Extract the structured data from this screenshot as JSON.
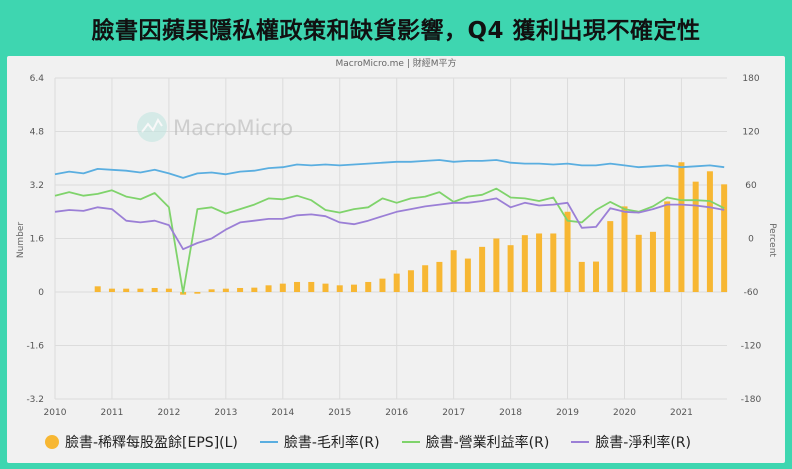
{
  "headline": "臉書因蘋果隱私權政策和缺貨影響，Q4 獲利出現不確定性",
  "source": "MacroMicro.me | 財經M平方",
  "watermark": "MacroMicro",
  "colors": {
    "eps": "#f7b733",
    "gross": "#5aaee0",
    "operating": "#7fd36b",
    "net": "#9b7fd6",
    "grid": "#dcdcdc",
    "axis_text": "#555555",
    "page_bg": "#3ed6b0",
    "card_bg": "#f1f1f1"
  },
  "chart_data": {
    "type": "bar+line",
    "title": "",
    "xlabel": "",
    "ylabel_left": "Number",
    "ylabel_right": "Percent",
    "xlim": [
      2010.0,
      2021.8
    ],
    "ylim_left": [
      -3.2,
      6.4
    ],
    "ylim_right": [
      -180,
      180
    ],
    "yticks_left": [
      "6.4",
      "4.8",
      "3.2",
      "1.6",
      "0",
      "-1.6",
      "-3.2"
    ],
    "yticks_right": [
      "180",
      "120",
      "60",
      "0",
      "-60",
      "-120",
      "-180"
    ],
    "xticks": [
      "2010",
      "2011",
      "2012",
      "2013",
      "2014",
      "2015",
      "2016",
      "2017",
      "2018",
      "2019",
      "2020",
      "2021"
    ],
    "grid": true,
    "legend_position": "bottom",
    "legend": [
      "臉書-稀釋每股盈餘[EPS](L)",
      "臉書-毛利率(R)",
      "臉書-營業利益率(R)",
      "臉書-淨利率(R)"
    ],
    "series": [
      {
        "name": "臉書-稀釋每股盈餘[EPS](L)",
        "type": "bar",
        "axis": "left",
        "color_key": "eps",
        "x": [
          2010.75,
          2011.0,
          2011.25,
          2011.5,
          2011.75,
          2012.0,
          2012.25,
          2012.5,
          2012.75,
          2013.0,
          2013.25,
          2013.5,
          2013.75,
          2014.0,
          2014.25,
          2014.5,
          2014.75,
          2015.0,
          2015.25,
          2015.5,
          2015.75,
          2016.0,
          2016.25,
          2016.5,
          2016.75,
          2017.0,
          2017.25,
          2017.5,
          2017.75,
          2018.0,
          2018.25,
          2018.5,
          2018.75,
          2019.0,
          2019.25,
          2019.5,
          2019.75,
          2020.0,
          2020.25,
          2020.5,
          2020.75,
          2021.0,
          2021.25,
          2021.5
        ],
        "y": [
          0.17,
          0.1,
          0.1,
          0.1,
          0.12,
          0.1,
          -0.08,
          -0.05,
          0.08,
          0.1,
          0.12,
          0.13,
          0.2,
          0.25,
          0.3,
          0.3,
          0.25,
          0.2,
          0.22,
          0.3,
          0.4,
          0.55,
          0.65,
          0.8,
          0.9,
          1.25,
          1.0,
          1.35,
          1.6,
          1.4,
          1.7,
          1.75,
          1.75,
          2.4,
          0.9,
          0.91,
          2.12,
          2.56,
          1.71,
          1.8,
          2.71,
          3.88,
          3.3,
          3.61
        ],
        "labels_note": "final bar 2021.75 = 3.22"
      },
      {
        "name": "臉書-毛利率(R)",
        "type": "line",
        "axis": "right",
        "color_key": "gross",
        "x": [
          2010.0,
          2010.25,
          2010.5,
          2010.75,
          2011.0,
          2011.25,
          2011.5,
          2011.75,
          2012.0,
          2012.25,
          2012.5,
          2012.75,
          2013.0,
          2013.25,
          2013.5,
          2013.75,
          2014.0,
          2014.25,
          2014.5,
          2014.75,
          2015.0,
          2015.25,
          2015.5,
          2015.75,
          2016.0,
          2016.25,
          2016.5,
          2016.75,
          2017.0,
          2017.25,
          2017.5,
          2017.75,
          2018.0,
          2018.25,
          2018.5,
          2018.75,
          2019.0,
          2019.25,
          2019.5,
          2019.75,
          2020.0,
          2020.25,
          2020.5,
          2020.75,
          2021.0,
          2021.25,
          2021.5,
          2021.75
        ],
        "y": [
          72,
          75,
          73,
          78,
          77,
          76,
          74,
          77,
          73,
          68,
          73,
          74,
          72,
          75,
          76,
          79,
          80,
          83,
          82,
          83,
          82,
          83,
          84,
          85,
          86,
          86,
          87,
          88,
          86,
          87,
          87,
          88,
          85,
          84,
          84,
          83,
          84,
          82,
          82,
          84,
          82,
          80,
          81,
          82,
          80,
          81,
          82,
          80
        ]
      },
      {
        "name": "臉書-營業利益率(R)",
        "type": "line",
        "axis": "right",
        "color_key": "operating",
        "x": [
          2010.0,
          2010.25,
          2010.5,
          2010.75,
          2011.0,
          2011.25,
          2011.5,
          2011.75,
          2012.0,
          2012.25,
          2012.5,
          2012.75,
          2013.0,
          2013.25,
          2013.5,
          2013.75,
          2014.0,
          2014.25,
          2014.5,
          2014.75,
          2015.0,
          2015.25,
          2015.5,
          2015.75,
          2016.0,
          2016.25,
          2016.5,
          2016.75,
          2017.0,
          2017.25,
          2017.5,
          2017.75,
          2018.0,
          2018.25,
          2018.5,
          2018.75,
          2019.0,
          2019.25,
          2019.5,
          2019.75,
          2020.0,
          2020.25,
          2020.5,
          2020.75,
          2021.0,
          2021.25,
          2021.5,
          2021.75
        ],
        "y": [
          48,
          52,
          48,
          50,
          54,
          47,
          44,
          51,
          35,
          -61,
          33,
          35,
          28,
          33,
          38,
          45,
          44,
          48,
          43,
          32,
          29,
          33,
          35,
          45,
          40,
          45,
          47,
          52,
          41,
          47,
          49,
          56,
          46,
          45,
          42,
          46,
          20,
          18,
          32,
          41,
          33,
          30,
          36,
          46,
          43,
          43,
          42,
          34
        ]
      },
      {
        "name": "臉書-淨利率(R)",
        "type": "line",
        "axis": "right",
        "color_key": "net",
        "x": [
          2010.0,
          2010.25,
          2010.5,
          2010.75,
          2011.0,
          2011.25,
          2011.5,
          2011.75,
          2012.0,
          2012.25,
          2012.5,
          2012.75,
          2013.0,
          2013.25,
          2013.5,
          2013.75,
          2014.0,
          2014.25,
          2014.5,
          2014.75,
          2015.0,
          2015.25,
          2015.5,
          2015.75,
          2016.0,
          2016.25,
          2016.5,
          2016.75,
          2017.0,
          2017.25,
          2017.5,
          2017.75,
          2018.0,
          2018.25,
          2018.5,
          2018.75,
          2019.0,
          2019.25,
          2019.5,
          2019.75,
          2020.0,
          2020.25,
          2020.5,
          2020.75,
          2021.0,
          2021.25,
          2021.5,
          2021.75
        ],
        "y": [
          30,
          32,
          31,
          35,
          33,
          20,
          18,
          20,
          15,
          -12,
          -5,
          0,
          10,
          18,
          20,
          22,
          22,
          26,
          27,
          25,
          18,
          16,
          20,
          25,
          30,
          33,
          36,
          38,
          40,
          40,
          42,
          45,
          35,
          40,
          37,
          38,
          40,
          12,
          13,
          34,
          30,
          29,
          33,
          38,
          38,
          37,
          35,
          32
        ]
      }
    ]
  }
}
